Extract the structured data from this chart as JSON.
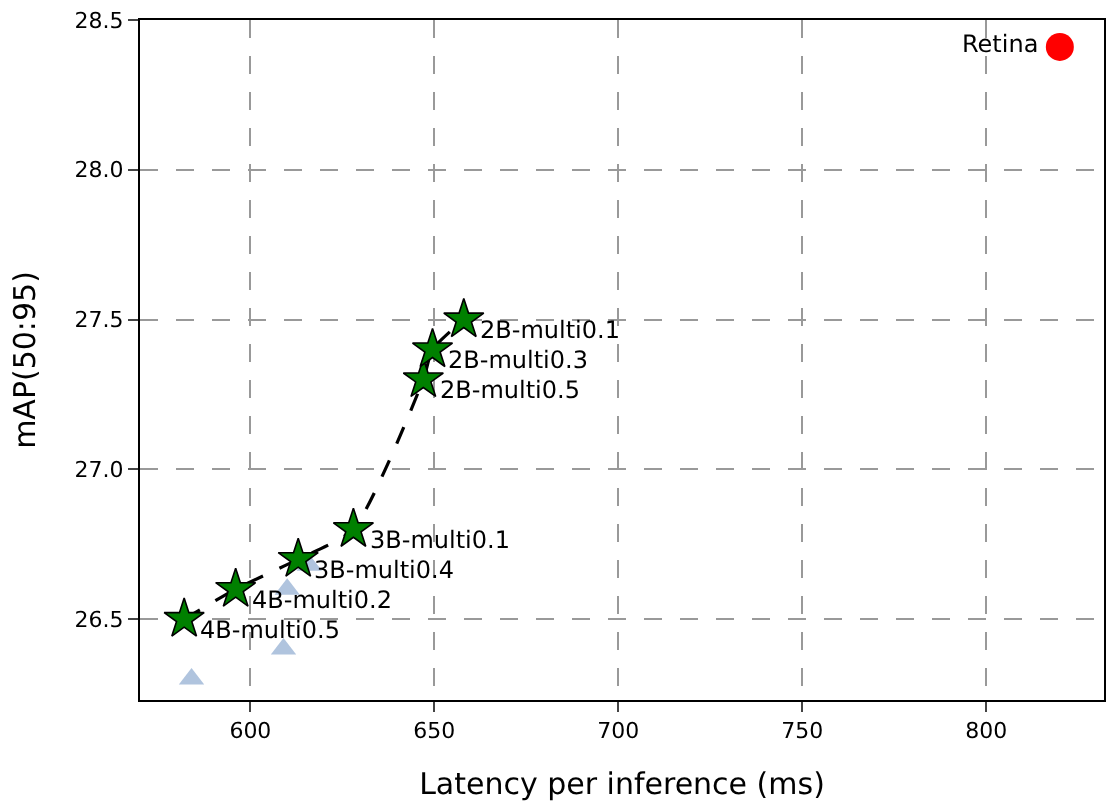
{
  "chart_data": {
    "type": "scatter",
    "xlabel": "Latency per inference (ms)",
    "ylabel": "mAP(50:95)",
    "xlim": [
      570,
      832
    ],
    "ylim": [
      26.23,
      28.5
    ],
    "xticks": [
      600,
      650,
      700,
      750,
      800
    ],
    "yticks": [
      26.5,
      {
        "value": 27,
        "label": "27.0"
      },
      27.5,
      {
        "value": 28,
        "label": "28.0"
      },
      28.5
    ],
    "grid": true,
    "legend": false,
    "series": [
      {
        "marker": "triangle",
        "color": "#b0c4de",
        "x": [
          584,
          609,
          610,
          616
        ],
        "values": [
          26.3,
          26.4,
          26.6,
          26.68
        ]
      },
      {
        "type": "line",
        "marker": "star",
        "line_style": "dashed",
        "color": "#008000",
        "x": [
          582,
          596,
          613,
          628,
          647,
          649.5,
          658
        ],
        "values": [
          26.5,
          26.6,
          26.7,
          26.8,
          27.3,
          27.4,
          27.5
        ]
      },
      {
        "marker": "circle",
        "color": "#ff0000",
        "x": [
          820
        ],
        "values": [
          28.41
        ]
      }
    ],
    "annotations": [
      {
        "text": "4B-multi0.5",
        "x": 582,
        "y": 26.5
      },
      {
        "text": "4B-multi0.2",
        "x": 596,
        "y": 26.6
      },
      {
        "text": "3B-multi0.4",
        "x": 613,
        "y": 26.7
      },
      {
        "text": "3B-multi0.1",
        "x": 628,
        "y": 26.8
      },
      {
        "text": "2B-multi0.5",
        "x": 647,
        "y": 27.3
      },
      {
        "text": "2B-multi0.3",
        "x": 649.5,
        "y": 27.4
      },
      {
        "text": "2B-multi0.1",
        "x": 658,
        "y": 27.5
      },
      {
        "text": "Retina",
        "x": 820,
        "y": 28.41
      }
    ]
  }
}
